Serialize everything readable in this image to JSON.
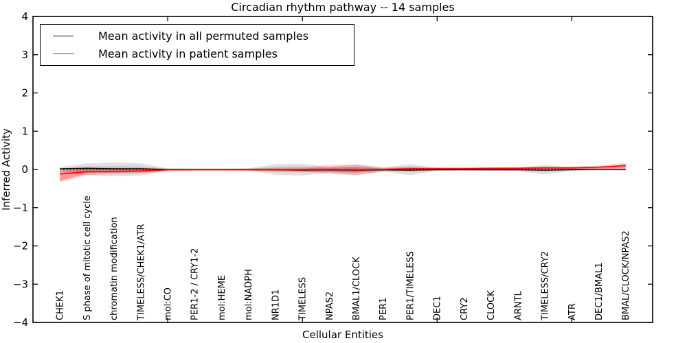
{
  "title": "Circadian rhythm pathway -- 14 samples",
  "legend": {
    "items": [
      {
        "label": "Mean activity in all permuted samples",
        "color": "#000000"
      },
      {
        "label": "Mean activity in patient samples",
        "color": "#ff0000"
      }
    ]
  },
  "axes": {
    "xlabel": "Cellular Entities",
    "ylabel": "Inferred Activity",
    "ytick_labels": [
      "4",
      "3",
      "2",
      "1",
      "0",
      "−1",
      "−2",
      "−3",
      "−4"
    ],
    "ytick_values": [
      4,
      3,
      2,
      1,
      0,
      -1,
      -2,
      -3,
      -4
    ]
  },
  "chart_data": {
    "type": "line",
    "title": "Circadian rhythm pathway -- 14 samples",
    "xlabel": "Cellular Entities",
    "ylabel": "Inferred Activity",
    "xlim": [
      0,
      23
    ],
    "ylim": [
      -4,
      4
    ],
    "xticks": [
      5,
      10,
      15,
      20
    ],
    "grid": false,
    "legend_position": "upper left",
    "zero_line": 0,
    "x": [
      1,
      2,
      3,
      4,
      5,
      6,
      7,
      8,
      9,
      10,
      11,
      12,
      13,
      14,
      15,
      16,
      17,
      18,
      19,
      20,
      21,
      22
    ],
    "categories": [
      "CHEK1",
      "S phase of mitotic cell cycle",
      "chromatin modification",
      "TIMELESS/CHEK1/ATR",
      "mol:CO",
      "PER1-2 / CRY1-2",
      "mol:HEME",
      "mol:NADPH",
      "NR1D1",
      "TIMELESS",
      "NPAS2",
      "BMAL1/CLOCK",
      "PER1",
      "PER1/TIMELESS",
      "DEC1",
      "CRY2",
      "CLOCK",
      "ARNTL",
      "TIMELESS/CRY2",
      "ATR",
      "DEC1/BMAL1",
      "BMAL/CLOCK/NPAS2"
    ],
    "series": [
      {
        "name": "Mean activity in all permuted samples",
        "color": "#000000",
        "values": [
          0.02,
          0.03,
          0.02,
          0.02,
          0.0,
          0.0,
          0.0,
          0.0,
          -0.01,
          -0.02,
          -0.01,
          -0.02,
          -0.01,
          -0.02,
          -0.01,
          -0.01,
          -0.01,
          -0.01,
          -0.02,
          -0.01,
          0.0,
          0.0
        ]
      },
      {
        "name": "Mean activity in patient samples",
        "color": "#ff0000",
        "values": [
          -0.12,
          -0.06,
          -0.05,
          -0.04,
          -0.01,
          -0.01,
          -0.01,
          -0.01,
          -0.01,
          -0.01,
          0.0,
          -0.01,
          0.0,
          0.02,
          0.02,
          0.02,
          0.03,
          0.03,
          0.04,
          0.04,
          0.06,
          0.1
        ]
      }
    ],
    "bands": [
      {
        "name": "permuted-spread-outer",
        "color": "rgba(0,0,0,0.12)",
        "upper": [
          0.06,
          0.16,
          0.18,
          0.16,
          0.03,
          0.02,
          0.02,
          0.03,
          0.14,
          0.15,
          0.06,
          0.14,
          0.04,
          0.14,
          0.04,
          0.03,
          0.04,
          0.04,
          0.12,
          0.04,
          0.03,
          0.04
        ],
        "lower": [
          -0.06,
          -0.16,
          -0.18,
          -0.16,
          -0.03,
          -0.02,
          -0.02,
          -0.03,
          -0.14,
          -0.16,
          -0.08,
          -0.16,
          -0.05,
          -0.15,
          -0.04,
          -0.03,
          -0.04,
          -0.05,
          -0.13,
          -0.04,
          -0.03,
          -0.04
        ]
      },
      {
        "name": "permuted-spread-inner",
        "color": "rgba(0,0,0,0.10)",
        "upper": [
          0.03,
          0.08,
          0.09,
          0.08,
          0.02,
          0.01,
          0.01,
          0.02,
          0.07,
          0.08,
          0.03,
          0.07,
          0.02,
          0.07,
          0.02,
          0.01,
          0.02,
          0.02,
          0.06,
          0.02,
          0.01,
          0.02
        ],
        "lower": [
          -0.03,
          -0.08,
          -0.09,
          -0.08,
          -0.02,
          -0.01,
          -0.01,
          -0.02,
          -0.07,
          -0.08,
          -0.04,
          -0.08,
          -0.02,
          -0.07,
          -0.02,
          -0.01,
          -0.02,
          -0.02,
          -0.06,
          -0.02,
          -0.01,
          -0.02
        ]
      },
      {
        "name": "patient-spread-outer",
        "color": "rgba(255,0,0,0.18)",
        "upper": [
          0.02,
          0.05,
          0.04,
          0.04,
          0.02,
          0.02,
          0.02,
          0.02,
          0.04,
          0.05,
          0.12,
          0.12,
          0.06,
          0.07,
          0.06,
          0.06,
          0.06,
          0.07,
          0.08,
          0.08,
          0.1,
          0.17
        ],
        "lower": [
          -0.33,
          -0.15,
          -0.12,
          -0.1,
          -0.04,
          -0.03,
          -0.03,
          -0.03,
          -0.05,
          -0.06,
          -0.12,
          -0.14,
          -0.06,
          -0.03,
          -0.02,
          -0.01,
          -0.01,
          -0.01,
          0.0,
          0.0,
          0.01,
          0.02
        ]
      },
      {
        "name": "patient-spread-inner",
        "color": "rgba(255,0,0,0.28)",
        "upper": [
          -0.04,
          0.01,
          0.01,
          0.01,
          0.01,
          0.01,
          0.01,
          0.01,
          0.02,
          0.02,
          0.06,
          0.06,
          0.03,
          0.04,
          0.04,
          0.04,
          0.04,
          0.05,
          0.05,
          0.06,
          0.07,
          0.13
        ],
        "lower": [
          -0.3,
          -0.1,
          -0.08,
          -0.07,
          -0.02,
          -0.02,
          -0.02,
          -0.02,
          -0.03,
          -0.04,
          -0.07,
          -0.08,
          -0.03,
          -0.01,
          0.0,
          0.0,
          0.01,
          0.01,
          0.01,
          0.01,
          0.02,
          0.04
        ]
      }
    ]
  }
}
